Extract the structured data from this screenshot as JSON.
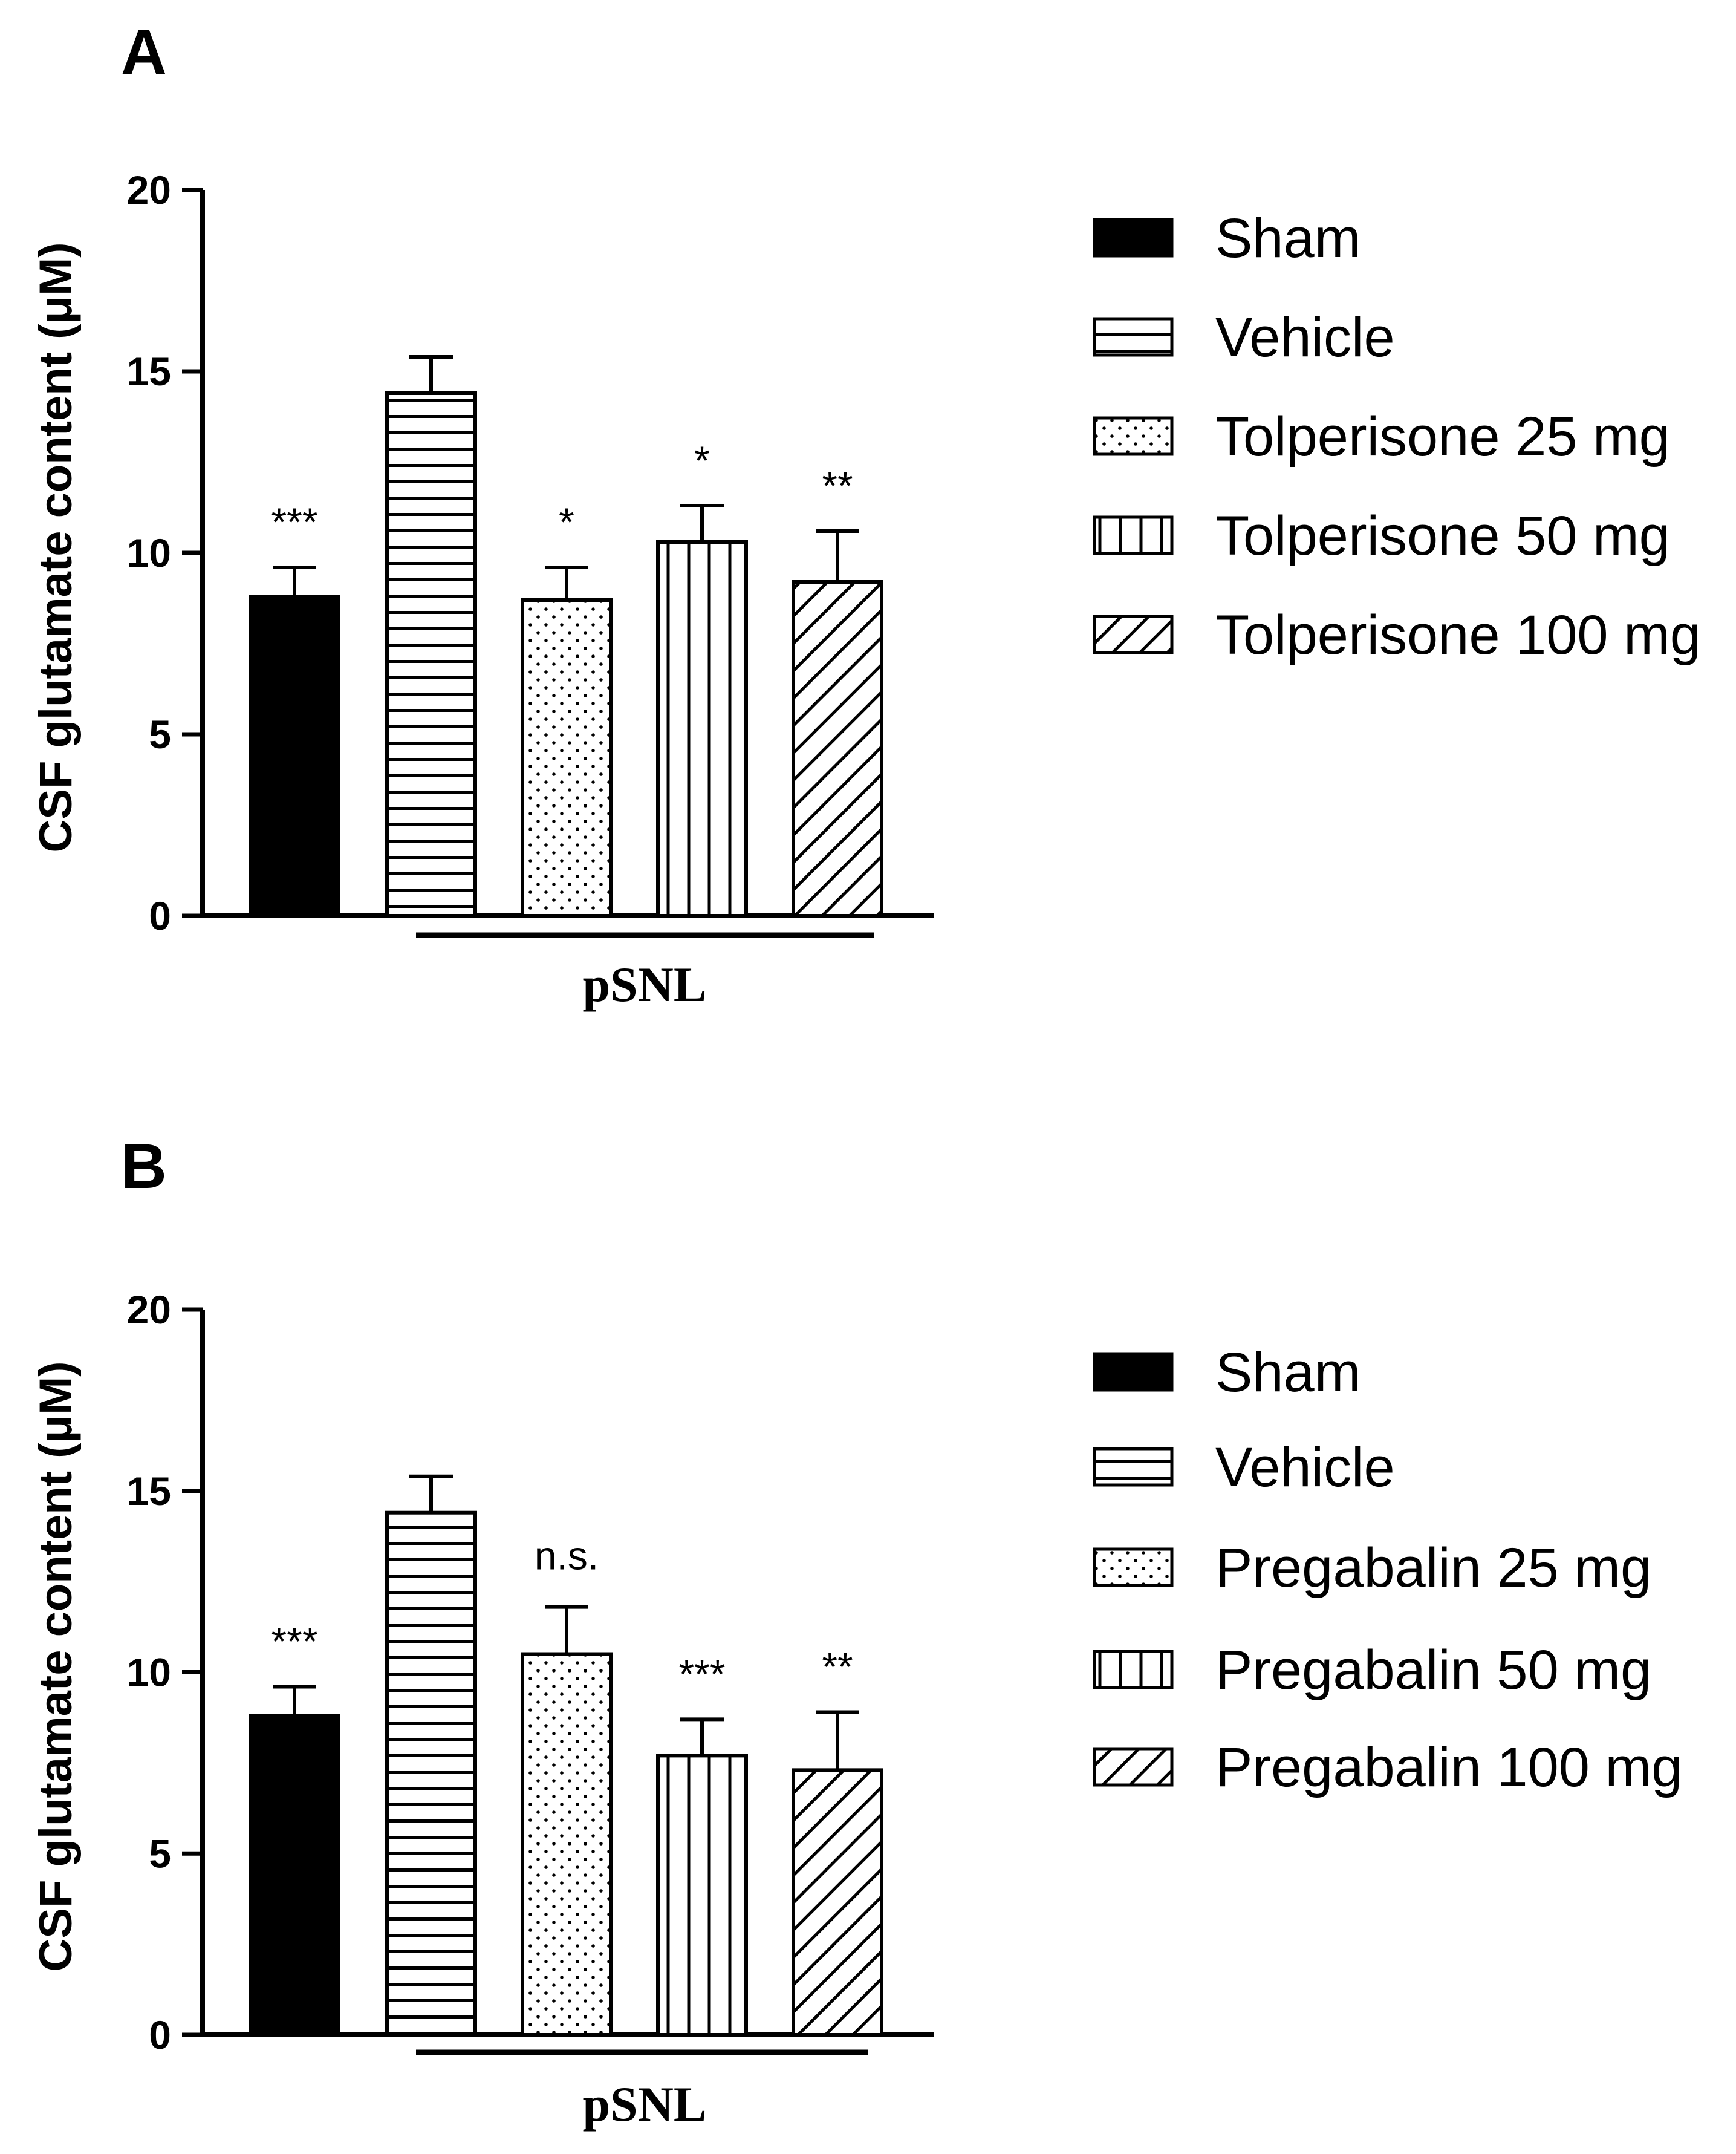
{
  "chart_data": [
    {
      "type": "bar",
      "panel": "A",
      "ylabel": "CSF glutamate content (μM)",
      "ylim": [
        0,
        20
      ],
      "yticks": [
        "0",
        "5",
        "10",
        "15",
        "20"
      ],
      "group_label": "pSNL",
      "categories": [
        "Sham",
        "Vehicle",
        "Tolperisone 25 mg",
        "Tolperisone 50 mg",
        "Tolperisone 100 mg"
      ],
      "values": [
        8.8,
        14.4,
        8.7,
        10.3,
        9.2
      ],
      "errors": [
        0.8,
        1.0,
        0.9,
        1.0,
        1.4
      ],
      "significance": [
        "***",
        "",
        "*",
        "*",
        "**"
      ],
      "patterns": [
        "solid",
        "horizontal",
        "dots",
        "vertical",
        "diagonal"
      ],
      "legend": [
        "Sham",
        "Vehicle",
        "Tolperisone 25 mg",
        "Tolperisone 50 mg",
        "Tolperisone 100 mg"
      ],
      "legend_position": "right",
      "grid": false
    },
    {
      "type": "bar",
      "panel": "B",
      "ylabel": "CSF glutamate content (μM)",
      "ylim": [
        0,
        20
      ],
      "yticks": [
        "0",
        "5",
        "10",
        "15",
        "20"
      ],
      "group_label": "pSNL",
      "categories": [
        "Sham",
        "Vehicle",
        "Pregabalin 25 mg",
        "Pregabalin 50 mg",
        "Pregabalin 100 mg"
      ],
      "values": [
        8.8,
        14.4,
        10.5,
        7.7,
        7.3
      ],
      "errors": [
        0.8,
        1.0,
        1.3,
        1.0,
        1.6
      ],
      "significance": [
        "***",
        "",
        "n.s.",
        "***",
        "**"
      ],
      "patterns": [
        "solid",
        "horizontal",
        "dots",
        "vertical",
        "diagonal"
      ],
      "legend": [
        "Sham",
        "Vehicle",
        "Pregabalin 25 mg",
        "Pregabalin 50 mg",
        "Pregabalin 100 mg"
      ],
      "legend_position": "right",
      "grid": false
    }
  ]
}
